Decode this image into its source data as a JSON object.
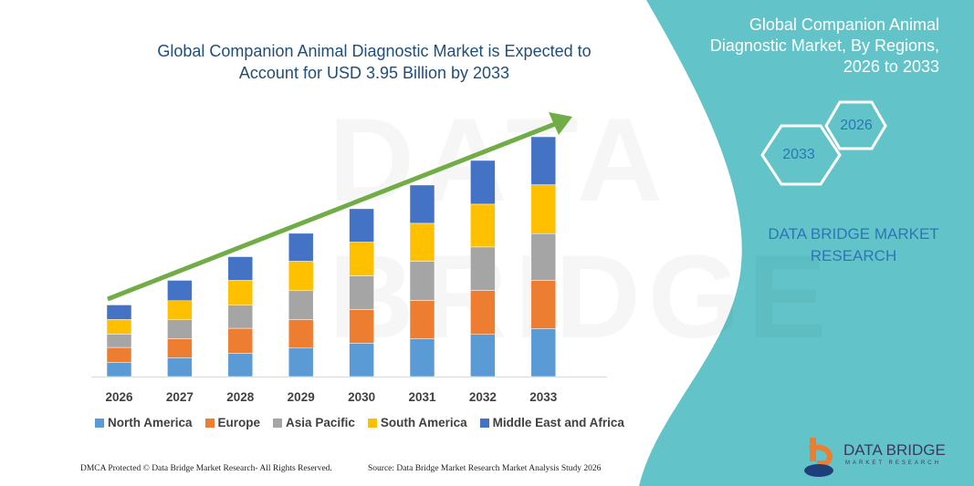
{
  "headline": {
    "line1": "Global Companion Animal Diagnostic Market is Expected to",
    "line2": "Account for USD 3.95 Billion by 2033"
  },
  "side_panel": {
    "title_line1": "Global Companion Animal",
    "title_line2": "Diagnostic Market, By Regions,",
    "title_line3": "2026 to 2033",
    "hex_start": "2026",
    "hex_end": "2033",
    "brand_line1": "DATA BRIDGE MARKET",
    "brand_line2": "RESEARCH",
    "logo_text": "DATA BRIDGE",
    "logo_subtext": "MARKET RESEARCH"
  },
  "footer": {
    "left": "DMCA Protected © Data Bridge Market Research- All Rights Reserved.",
    "right": "Source: Data Bridge Market Research Market Analysis Study 2026"
  },
  "colors": {
    "panel": "#62c4c9",
    "arrow": "#70ad47"
  },
  "chart_data": {
    "type": "bar",
    "stacked": true,
    "title": "Global Companion Animal Diagnostic Market is Expected to Account for USD 3.95 Billion by 2033",
    "categories": [
      "2026",
      "2027",
      "2028",
      "2029",
      "2030",
      "2031",
      "2032",
      "2033"
    ],
    "ylim": [
      0,
      3.95
    ],
    "grid": false,
    "legend_position": "bottom",
    "trend_arrow": true,
    "series": [
      {
        "name": "North America",
        "color": "#5b9bd5",
        "values": [
          0.235,
          0.31,
          0.385,
          0.47,
          0.55,
          0.625,
          0.695,
          0.79
        ]
      },
      {
        "name": "Europe",
        "color": "#ed7d31",
        "values": [
          0.245,
          0.315,
          0.41,
          0.47,
          0.555,
          0.63,
          0.725,
          0.795
        ]
      },
      {
        "name": "Asia Pacific",
        "color": "#a5a5a5",
        "values": [
          0.22,
          0.31,
          0.38,
          0.475,
          0.555,
          0.645,
          0.715,
          0.77
        ]
      },
      {
        "name": "South America",
        "color": "#ffc000",
        "values": [
          0.24,
          0.315,
          0.41,
          0.485,
          0.555,
          0.625,
          0.705,
          0.805
        ]
      },
      {
        "name": "Middle East and Africa",
        "color": "#4472c4",
        "values": [
          0.24,
          0.335,
          0.39,
          0.46,
          0.55,
          0.63,
          0.72,
          0.79
        ]
      }
    ]
  }
}
